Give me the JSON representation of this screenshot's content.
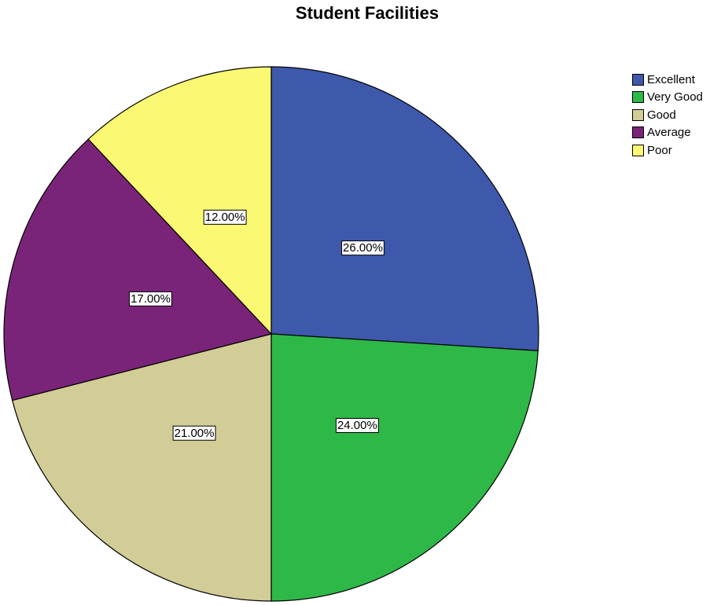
{
  "chart_data": {
    "type": "pie",
    "title": "Student Facilities",
    "categories": [
      "Excellent",
      "Very Good",
      "Good",
      "Average",
      "Poor"
    ],
    "values": [
      26.0,
      24.0,
      21.0,
      17.0,
      12.0
    ],
    "labels": [
      "26.00%",
      "24.00%",
      "21.00%",
      "17.00%",
      "12.00%"
    ],
    "colors": [
      "#3e58ac",
      "#2eb848",
      "#d2cc96",
      "#7a2479",
      "#fbf873"
    ],
    "legend_position": "top-right",
    "start_angle": "12 o'clock",
    "direction": "clockwise"
  }
}
